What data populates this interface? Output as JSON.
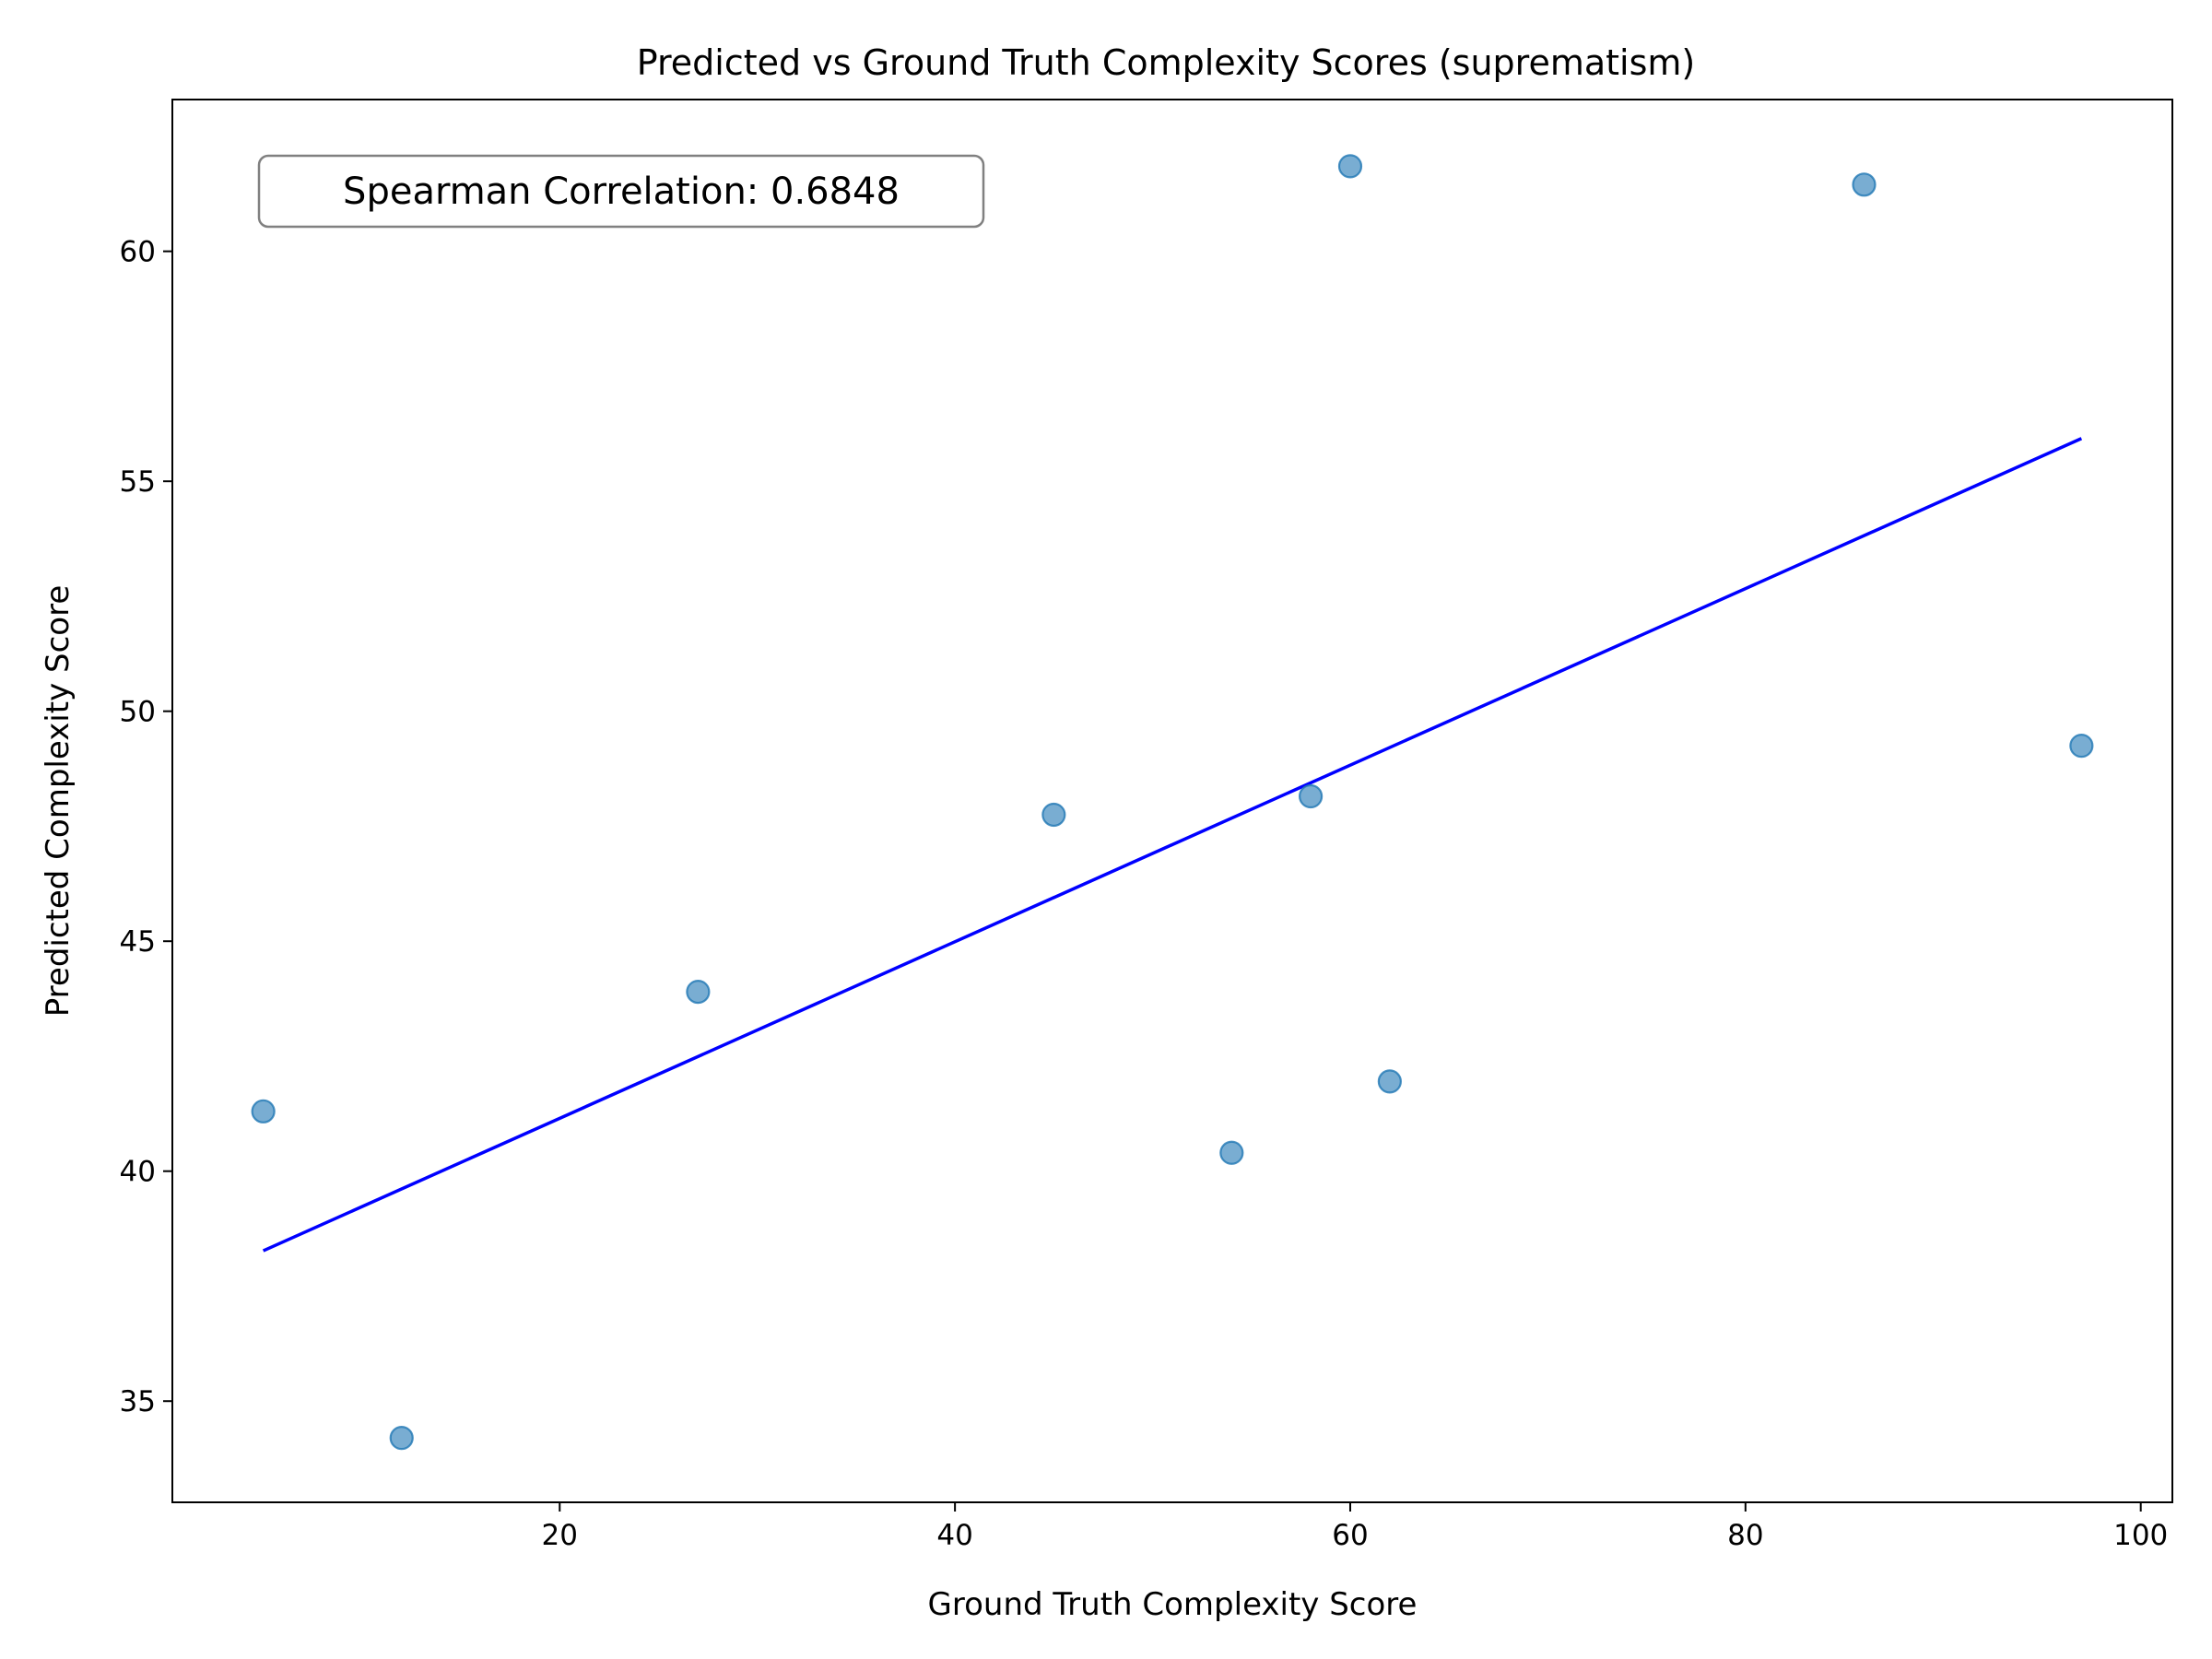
{
  "chart_data": {
    "type": "scatter",
    "title": "Predicted vs Ground Truth Complexity Scores (suprematism)",
    "xlabel": "Ground Truth Complexity Score",
    "ylabel": "Predicted Complexity Score",
    "xlim": [
      0.4,
      101.6
    ],
    "ylim": [
      32.8,
      63.3
    ],
    "xticks": [
      20,
      40,
      60,
      80,
      100
    ],
    "yticks": [
      35,
      40,
      45,
      50,
      55,
      60
    ],
    "grid": false,
    "points": [
      {
        "x": 5,
        "y": 41.3
      },
      {
        "x": 12,
        "y": 34.2
      },
      {
        "x": 27,
        "y": 43.9
      },
      {
        "x": 45,
        "y": 47.75
      },
      {
        "x": 54,
        "y": 40.4
      },
      {
        "x": 58,
        "y": 48.15
      },
      {
        "x": 60,
        "y": 61.85
      },
      {
        "x": 62,
        "y": 41.95
      },
      {
        "x": 86,
        "y": 61.45
      },
      {
        "x": 97,
        "y": 49.25
      }
    ],
    "point_color": "#1f77b4",
    "point_alpha": 0.6,
    "fit_line": {
      "x": [
        5,
        97
      ],
      "y": [
        38.27,
        55.93
      ],
      "color": "#0000ff"
    },
    "annotation": "Spearman Correlation: 0.6848"
  }
}
